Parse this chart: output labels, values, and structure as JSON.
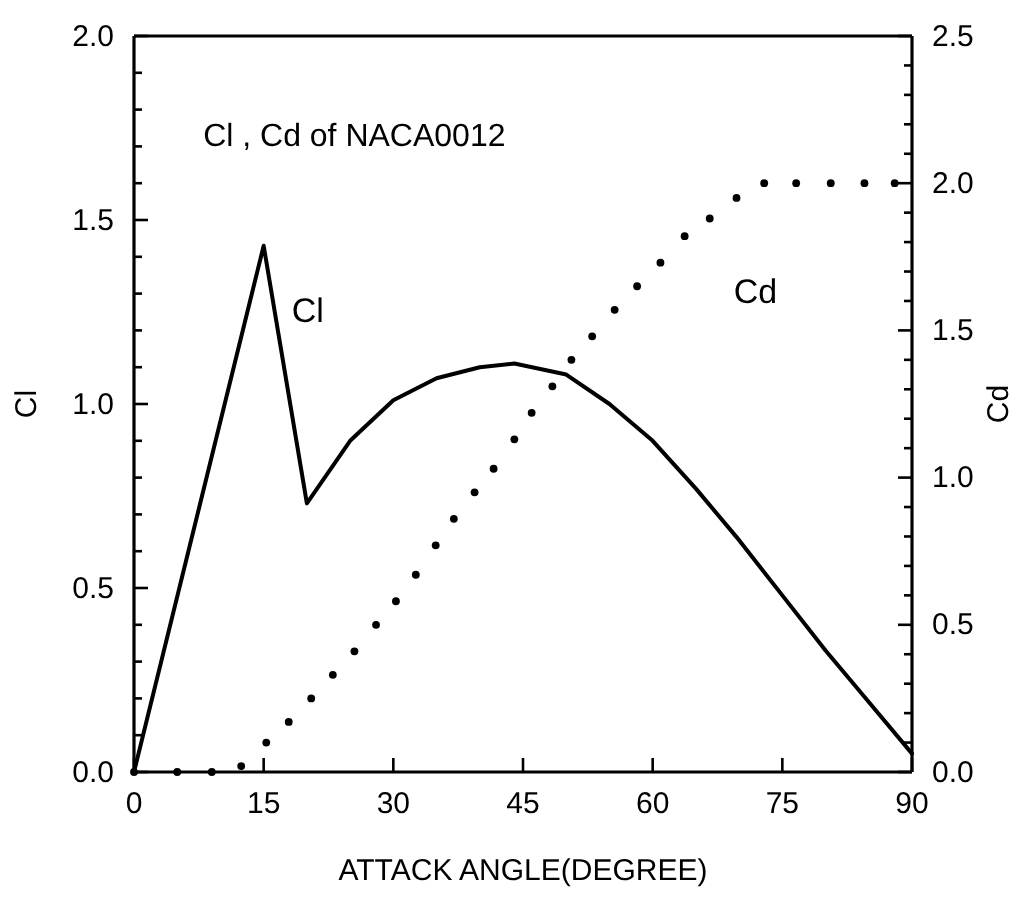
{
  "chart_data": {
    "type": "line",
    "title": "Cl , Cd  of NACA0012",
    "xlabel": "ATTACK ANGLE(DEGREE)",
    "ylabel": "Cl",
    "y2label": "Cd",
    "xlim": [
      0,
      90
    ],
    "xticks": [
      0,
      15,
      30,
      45,
      60,
      75,
      90
    ],
    "ylim": [
      0,
      2
    ],
    "yticks": [
      {
        "value": 0,
        "label": "0.0"
      },
      {
        "value": 0.1,
        "label": null
      },
      {
        "value": 0.2,
        "label": null
      },
      {
        "value": 0.3,
        "label": null
      },
      {
        "value": 0.4,
        "label": null
      },
      {
        "value": 0.5,
        "label": "0.5"
      },
      {
        "value": 0.6,
        "label": null
      },
      {
        "value": 0.7,
        "label": null
      },
      {
        "value": 0.8,
        "label": null
      },
      {
        "value": 0.9,
        "label": null
      },
      {
        "value": 1,
        "label": "1.0"
      },
      {
        "value": 1.1,
        "label": null
      },
      {
        "value": 1.2,
        "label": null
      },
      {
        "value": 1.3,
        "label": null
      },
      {
        "value": 1.4,
        "label": null
      },
      {
        "value": 1.5,
        "label": "1.5"
      },
      {
        "value": 1.6,
        "label": null
      },
      {
        "value": 1.7,
        "label": null
      },
      {
        "value": 1.8,
        "label": null
      },
      {
        "value": 1.9,
        "label": null
      },
      {
        "value": 2,
        "label": "2.0"
      }
    ],
    "y2lim": [
      0,
      2.5
    ],
    "y2ticks": [
      {
        "value": 0,
        "label": "0.0"
      },
      {
        "value": 0.1,
        "label": null
      },
      {
        "value": 0.2,
        "label": null
      },
      {
        "value": 0.3,
        "label": null
      },
      {
        "value": 0.4,
        "label": null
      },
      0.5,
      {
        "value": 0.6,
        "label": null
      },
      {
        "value": 0.7,
        "label": null
      },
      {
        "value": 0.8,
        "label": null
      },
      {
        "value": 0.9,
        "label": null
      },
      {
        "value": 1,
        "label": "1.0"
      },
      {
        "value": 1.1,
        "label": null
      },
      {
        "value": 1.2,
        "label": null
      },
      {
        "value": 1.3,
        "label": null
      },
      {
        "value": 1.4,
        "label": null
      },
      1.5,
      {
        "value": 1.6,
        "label": null
      },
      {
        "value": 1.7,
        "label": null
      },
      {
        "value": 1.8,
        "label": null
      },
      {
        "value": 1.9,
        "label": null
      },
      {
        "value": 2,
        "label": "2.0"
      },
      {
        "value": 2.1,
        "label": null
      },
      {
        "value": 2.2,
        "label": null
      },
      {
        "value": 2.3,
        "label": null
      },
      {
        "value": 2.4,
        "label": null
      },
      2.5
    ],
    "grid": false,
    "legend": false,
    "series": [
      {
        "name": "Cl",
        "color": "#000000",
        "marker": "none",
        "line_style": "solid",
        "x": [
          0,
          15,
          20,
          25,
          30,
          35,
          40,
          44,
          50,
          55,
          60,
          65,
          70,
          75,
          80,
          85,
          90
        ],
        "values": [
          0,
          1.43,
          0.73,
          0.9,
          1.01,
          1.07,
          1.1,
          1.11,
          1.08,
          1.0,
          0.9,
          0.77,
          0.63,
          0.48,
          0.33,
          0.19,
          0.05
        ]
      },
      {
        "name": "Cd",
        "type": "scatter",
        "axis": "y2",
        "color": "#000000",
        "marker": "circle",
        "x": [
          0,
          5,
          9,
          12.4,
          15.3,
          17.9,
          20.5,
          23,
          25.5,
          28,
          30.3,
          32.6,
          34.9,
          37,
          39.4,
          41.6,
          44,
          46,
          48.4,
          50.6,
          53,
          55.6,
          58.2,
          60.9,
          63.7,
          66.6,
          69.7,
          72.9,
          76.6,
          80.6,
          84.5,
          88
        ],
        "values": [
          0,
          0,
          0,
          0.02,
          0.1,
          0.17,
          0.25,
          0.33,
          0.41,
          0.5,
          0.58,
          0.67,
          0.77,
          0.86,
          0.95,
          1.03,
          1.13,
          1.22,
          1.31,
          1.4,
          1.48,
          1.57,
          1.65,
          1.73,
          1.82,
          1.88,
          1.95,
          2.0,
          2.0,
          2.0,
          2.0,
          2.0
        ]
      }
    ]
  }
}
